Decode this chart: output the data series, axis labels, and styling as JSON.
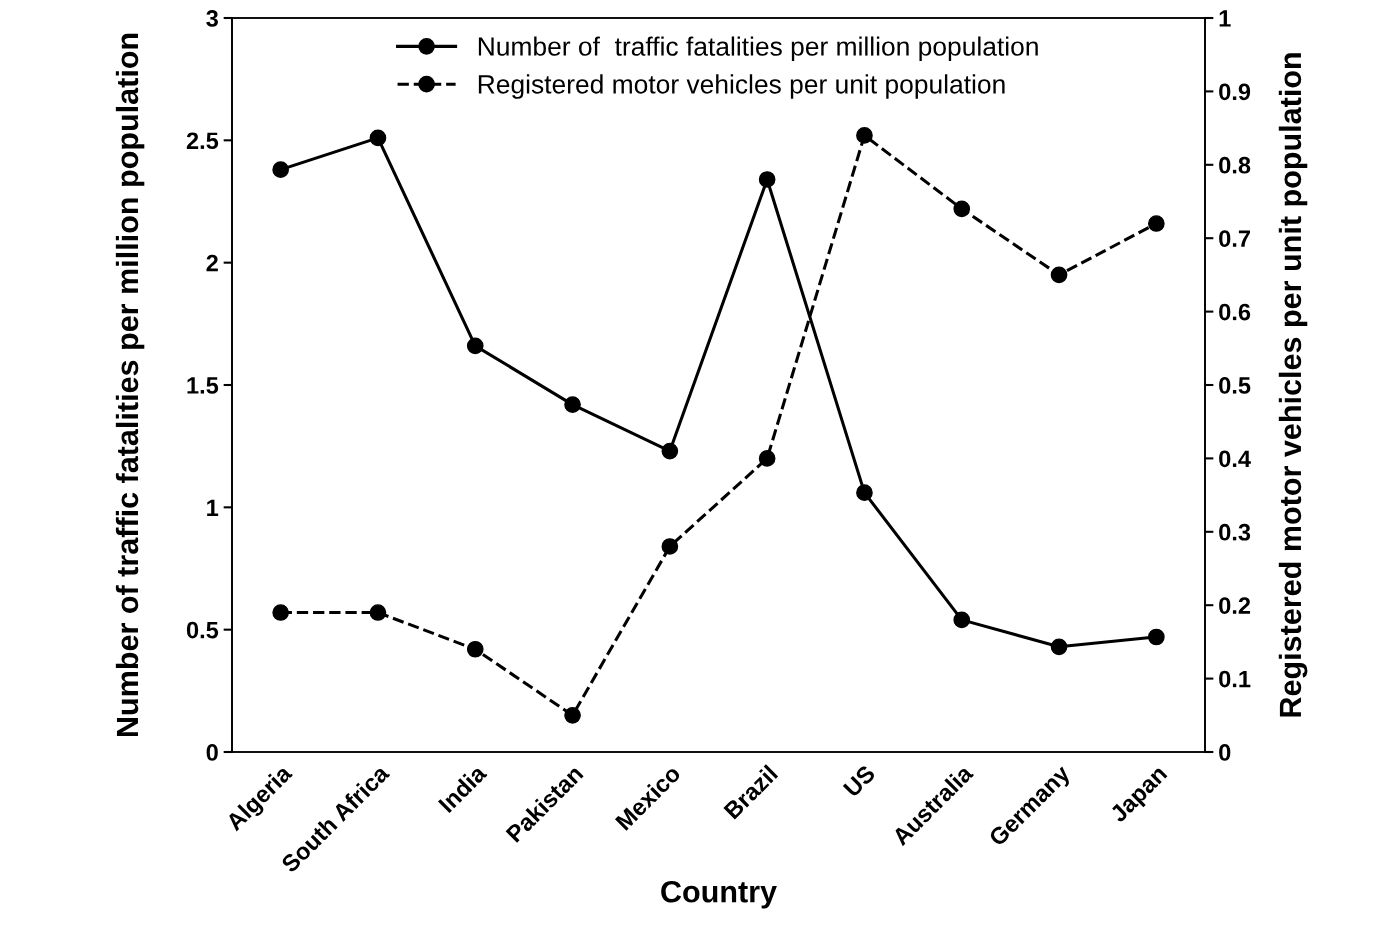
{
  "chart_data": {
    "type": "line",
    "xlabel": "Country",
    "ylabel": "Number of traffic fatalities per million population",
    "y2label": "Registered motor vehicles per unit population",
    "categories": [
      "Algeria",
      "South Africa",
      "India",
      "Pakistan",
      "Mexico",
      "Brazil",
      "US",
      "Australia",
      "Germany",
      "Japan"
    ],
    "series": [
      {
        "name": "Number of  traffic fatalities per million population",
        "color": "#000000",
        "line_style": "solid",
        "values": [
          2.38,
          2.51,
          1.66,
          1.42,
          1.23,
          2.34,
          1.06,
          0.54,
          0.43,
          0.47
        ]
      },
      {
        "name": "Registered motor vehicles per unit population",
        "color": "#000000",
        "line_style": "dashed",
        "axis": "y2",
        "values": [
          0.19,
          0.19,
          0.14,
          0.05,
          0.28,
          0.4,
          0.84,
          0.74,
          0.65,
          0.72
        ]
      }
    ],
    "ylim": [
      0,
      3
    ],
    "yticks": [
      0,
      0.5,
      1,
      1.5,
      2,
      2.5,
      3
    ],
    "y2lim": [
      0,
      1
    ],
    "y2ticks": [
      0,
      0.1,
      0.2,
      0.3,
      0.4,
      0.5,
      0.6,
      0.7,
      0.8,
      0.9,
      1
    ],
    "marker": "circle",
    "grid": false,
    "legend": "top"
  }
}
